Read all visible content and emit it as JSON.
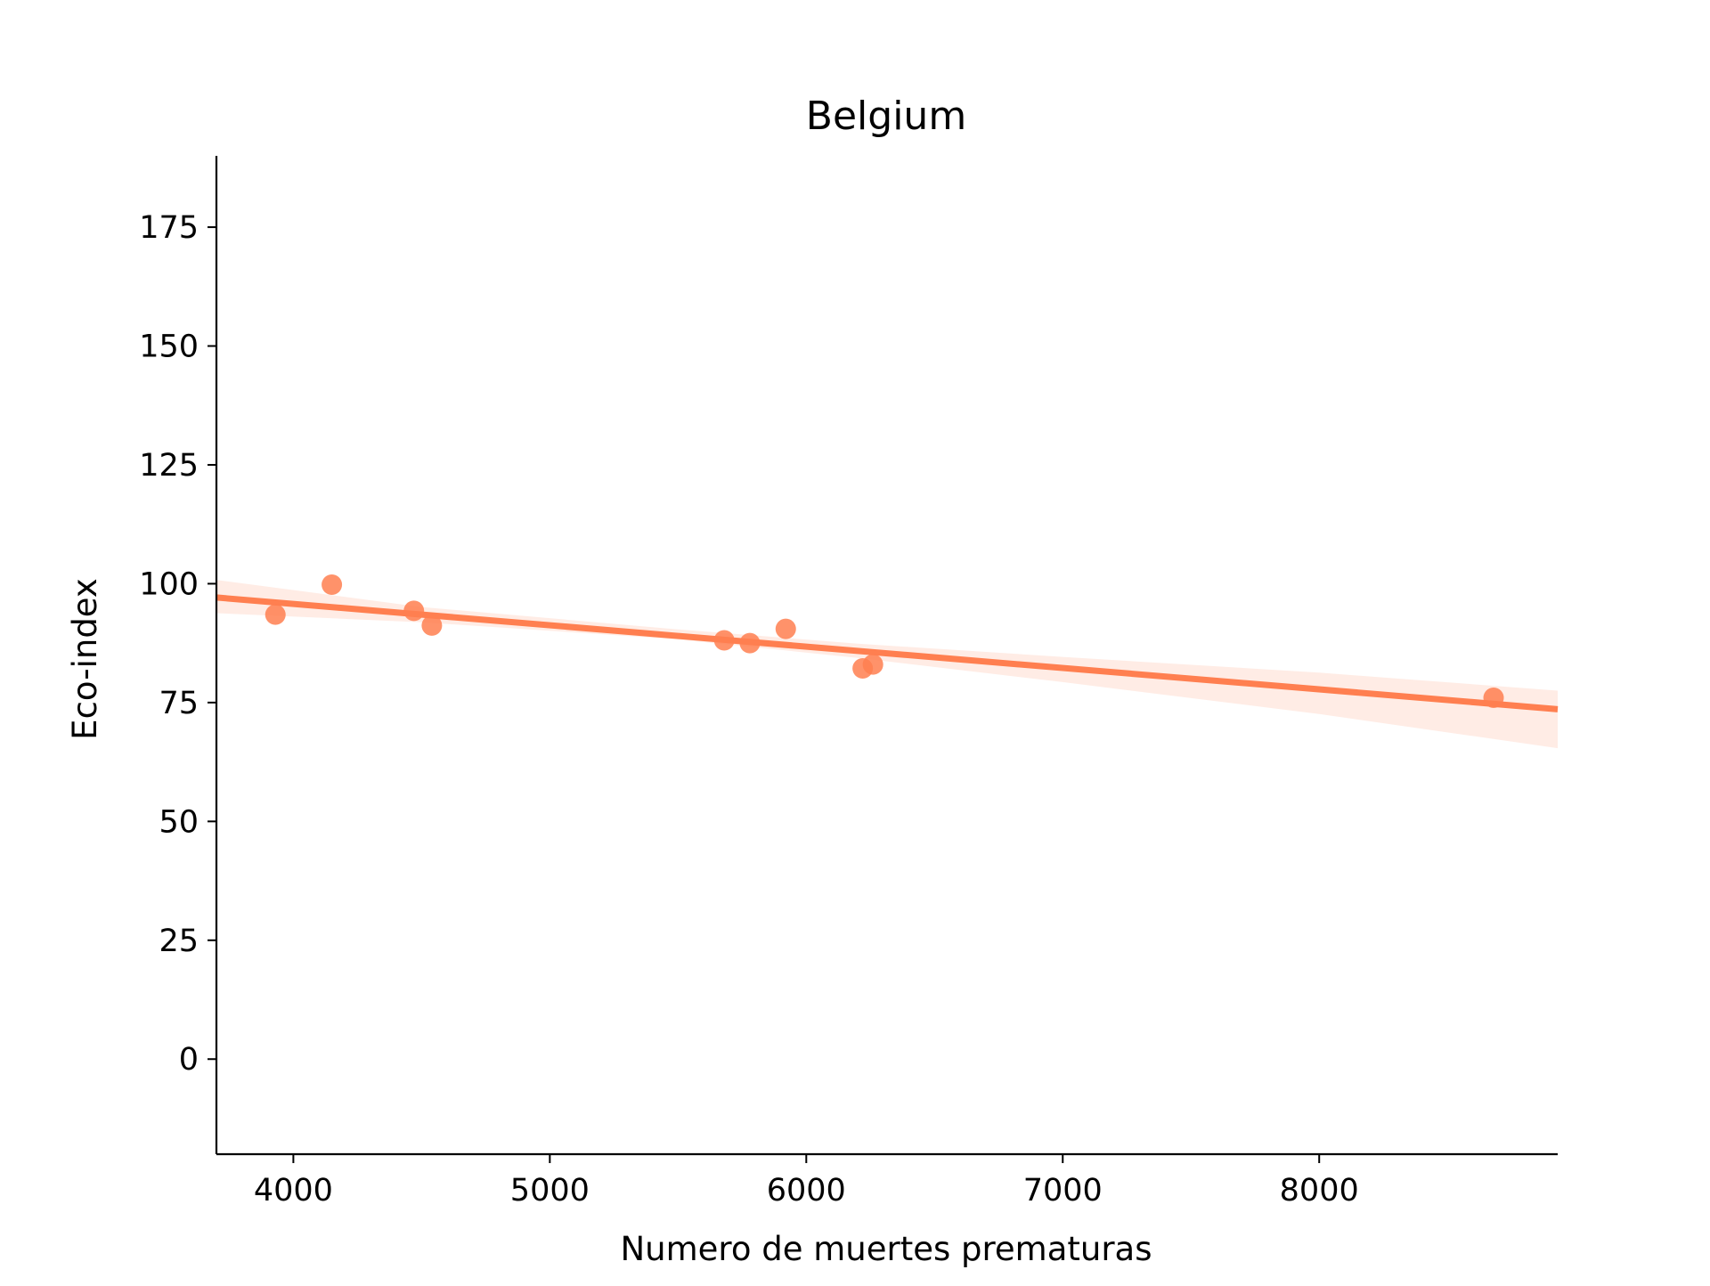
{
  "chart_data": {
    "type": "scatter",
    "title": "Belgium",
    "xlabel": "Numero de muertes prematuras",
    "ylabel": "Eco-index",
    "xlim": [
      3700,
      8930
    ],
    "ylim": [
      -20,
      190
    ],
    "x_ticks": [
      4000,
      5000,
      6000,
      7000,
      8000
    ],
    "y_ticks": [
      0,
      25,
      50,
      75,
      100,
      125,
      150,
      175
    ],
    "grid": false,
    "legend": "none",
    "colors": {
      "points": "#ff7f50",
      "line": "#ff7f50",
      "band": "#ff7f50"
    },
    "points": [
      {
        "x": 3930,
        "y": 93.5
      },
      {
        "x": 4150,
        "y": 99.8
      },
      {
        "x": 4470,
        "y": 94.3
      },
      {
        "x": 4540,
        "y": 91.2
      },
      {
        "x": 5680,
        "y": 88.1
      },
      {
        "x": 5780,
        "y": 87.5
      },
      {
        "x": 5920,
        "y": 90.5
      },
      {
        "x": 6220,
        "y": 82.2
      },
      {
        "x": 6260,
        "y": 83.0
      },
      {
        "x": 8680,
        "y": 76.0
      }
    ],
    "regression": {
      "x": [
        3700,
        8930
      ],
      "y": [
        97.1,
        73.6
      ]
    },
    "confidence_band": [
      {
        "x": 3700,
        "lower": 93.8,
        "upper": 100.8
      },
      {
        "x": 4500,
        "lower": 91.9,
        "upper": 95.1
      },
      {
        "x": 5500,
        "lower": 88.3,
        "upper": 90.4
      },
      {
        "x": 6200,
        "lower": 84.4,
        "upper": 87.4
      },
      {
        "x": 7000,
        "lower": 79.3,
        "upper": 84.6
      },
      {
        "x": 8000,
        "lower": 72.6,
        "upper": 81.3
      },
      {
        "x": 8930,
        "lower": 65.4,
        "upper": 77.5
      }
    ]
  }
}
